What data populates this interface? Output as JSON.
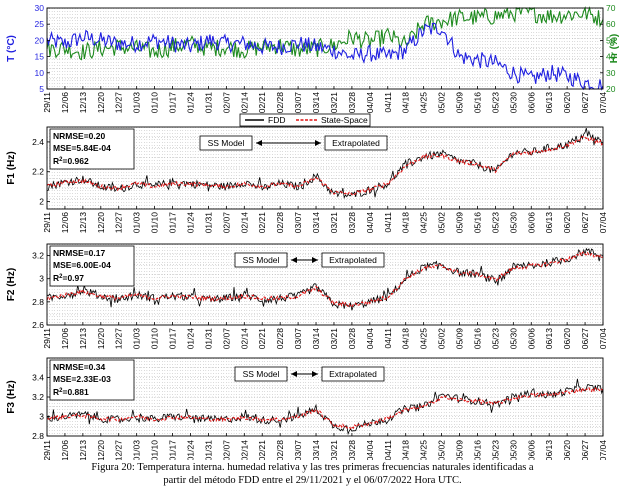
{
  "colors": {
    "temp": "#1f1fe0",
    "hum": "#1e8a1e",
    "fdd": "#000000",
    "ss": "#e01414",
    "grid": "#b5b5b5",
    "frame": "#000000"
  },
  "caption": {
    "line1": "Figura 20: Temperatura interna. humedad relativa y las tres primeras frecuencias naturales identificadas a",
    "line2": "partir del método FDD entre el 29/11/2021 y el 06/07/2022 Hora UTC."
  },
  "chart_data": [
    {
      "type": "line",
      "title": "",
      "ylabel": "T (°C)",
      "y2label": "Hr (%)",
      "ylim": [
        5,
        30
      ],
      "y2lim": [
        20,
        70
      ],
      "yticks": [
        "5",
        "10",
        "15",
        "20",
        "25",
        "30"
      ],
      "y2ticks": [
        "20",
        "30",
        "40",
        "50",
        "60",
        "70"
      ],
      "xticks": [
        "29/11",
        "12/06",
        "12/13",
        "12/20",
        "12/27",
        "01/03",
        "01/10",
        "01/17",
        "01/24",
        "01/31",
        "02/07",
        "02/14",
        "02/21",
        "02/28",
        "03/07",
        "03/14",
        "03/21",
        "03/28",
        "04/04",
        "04/11",
        "04/18",
        "04/25",
        "05/02",
        "05/09",
        "05/16",
        "05/23",
        "05/30",
        "06/06",
        "06/13",
        "06/20",
        "06/27",
        "07/04"
      ],
      "series": [
        {
          "name": "T",
          "axis": "left",
          "values": [
            20,
            19,
            21,
            20,
            19,
            19,
            20,
            19,
            18,
            20,
            19,
            19,
            18,
            18,
            19,
            18,
            17,
            15,
            16,
            15,
            17,
            23,
            24,
            15,
            14,
            13,
            10,
            8,
            10,
            9,
            7,
            6
          ]
        },
        {
          "name": "Hr",
          "axis": "right",
          "values": [
            45,
            45,
            43,
            45,
            46,
            45,
            43,
            46,
            48,
            45,
            46,
            44,
            46,
            47,
            44,
            45,
            47,
            52,
            49,
            53,
            47,
            60,
            62,
            64,
            64,
            65,
            67,
            67,
            65,
            66,
            67,
            63
          ]
        }
      ]
    },
    {
      "type": "line",
      "ylabel": "F1 (Hz)",
      "ylim": [
        1.95,
        2.5
      ],
      "yticks": [
        "2",
        "2.2",
        "2.4"
      ],
      "legend": [
        "FDD",
        "State-Space"
      ],
      "metrics": {
        "nrmse": "NRMSE=0.20",
        "mse": "MSE=5.84E-04",
        "r2_label": "R",
        "r2_value": "=0.962"
      },
      "annotations": {
        "model": "SS Model",
        "extrap": "Extrapolated"
      },
      "xticks": [
        "29/11",
        "12/06",
        "12/13",
        "12/20",
        "12/27",
        "01/03",
        "01/10",
        "01/17",
        "01/24",
        "01/31",
        "02/07",
        "02/14",
        "02/21",
        "02/28",
        "03/07",
        "03/14",
        "03/21",
        "03/28",
        "04/04",
        "04/11",
        "04/18",
        "04/25",
        "05/02",
        "05/09",
        "05/16",
        "05/23",
        "05/30",
        "06/06",
        "06/13",
        "06/20",
        "06/27",
        "07/04"
      ],
      "series": [
        {
          "name": "FDD",
          "values": [
            2.1,
            2.13,
            2.15,
            2.1,
            2.08,
            2.12,
            2.1,
            2.13,
            2.12,
            2.11,
            2.1,
            2.13,
            2.09,
            2.12,
            2.1,
            2.17,
            2.05,
            2.04,
            2.08,
            2.12,
            2.25,
            2.3,
            2.32,
            2.27,
            2.25,
            2.2,
            2.33,
            2.33,
            2.36,
            2.38,
            2.45,
            2.4
          ]
        },
        {
          "name": "State-Space",
          "values": [
            2.1,
            2.13,
            2.14,
            2.1,
            2.09,
            2.12,
            2.1,
            2.12,
            2.12,
            2.11,
            2.1,
            2.12,
            2.1,
            2.12,
            2.1,
            2.16,
            2.06,
            2.05,
            2.08,
            2.12,
            2.24,
            2.3,
            2.31,
            2.27,
            2.25,
            2.21,
            2.32,
            2.33,
            2.35,
            2.38,
            2.43,
            2.39
          ]
        }
      ]
    },
    {
      "type": "line",
      "ylabel": "F2 (Hz)",
      "ylim": [
        2.6,
        3.3
      ],
      "yticks": [
        "2.6",
        "2.8",
        "3",
        "3.2"
      ],
      "metrics": {
        "nrmse": "NRMSE=0.17",
        "mse": "MSE=6.00E-04",
        "r2_label": "R",
        "r2_value": "=0.97"
      },
      "annotations": {
        "model": "SS Model",
        "extrap": "Extrapolated"
      },
      "xticks": [
        "29/11",
        "12/06",
        "12/13",
        "12/20",
        "12/27",
        "01/03",
        "01/10",
        "01/17",
        "01/24",
        "01/31",
        "02/07",
        "02/14",
        "02/21",
        "02/28",
        "03/07",
        "03/14",
        "03/21",
        "03/28",
        "04/04",
        "04/11",
        "04/18",
        "04/25",
        "05/02",
        "05/09",
        "05/16",
        "05/23",
        "05/30",
        "06/06",
        "06/13",
        "06/20",
        "06/27",
        "07/04"
      ],
      "series": [
        {
          "name": "FDD",
          "values": [
            2.83,
            2.86,
            2.9,
            2.85,
            2.82,
            2.86,
            2.83,
            2.85,
            2.84,
            2.82,
            2.83,
            2.86,
            2.82,
            2.83,
            2.85,
            2.93,
            2.78,
            2.76,
            2.8,
            2.84,
            3.0,
            3.1,
            3.12,
            3.05,
            3.04,
            2.98,
            3.1,
            3.11,
            3.14,
            3.17,
            3.24,
            3.2
          ]
        },
        {
          "name": "State-Space",
          "values": [
            2.83,
            2.86,
            2.89,
            2.85,
            2.83,
            2.86,
            2.83,
            2.85,
            2.84,
            2.83,
            2.83,
            2.85,
            2.83,
            2.83,
            2.85,
            2.92,
            2.79,
            2.77,
            2.8,
            2.84,
            3.0,
            3.09,
            3.11,
            3.05,
            3.04,
            2.99,
            3.09,
            3.11,
            3.13,
            3.17,
            3.22,
            3.19
          ]
        }
      ]
    },
    {
      "type": "line",
      "ylabel": "F3 (Hz)",
      "ylim": [
        2.8,
        3.6
      ],
      "yticks": [
        "2.8",
        "3",
        "3.2",
        "3.4"
      ],
      "metrics": {
        "nrmse": "NRMSE=0.34",
        "mse": "MSE=2.33E-03",
        "r2_label": "R",
        "r2_value": "=0.881"
      },
      "annotations": {
        "model": "SS Model",
        "extrap": "Extrapolated"
      },
      "xticks": [
        "29/11",
        "12/06",
        "12/13",
        "12/20",
        "12/27",
        "01/03",
        "01/10",
        "01/17",
        "01/24",
        "01/31",
        "02/07",
        "02/14",
        "02/21",
        "02/28",
        "03/07",
        "03/14",
        "03/21",
        "03/28",
        "04/04",
        "04/11",
        "04/18",
        "04/25",
        "05/02",
        "05/09",
        "05/16",
        "05/23",
        "05/30",
        "06/06",
        "06/13",
        "06/20",
        "06/27",
        "07/04"
      ],
      "series": [
        {
          "name": "FDD",
          "values": [
            2.98,
            3.0,
            3.02,
            2.98,
            2.96,
            3.0,
            2.97,
            3.0,
            2.99,
            2.97,
            2.97,
            3.0,
            2.96,
            2.97,
            3.0,
            3.08,
            2.9,
            2.88,
            2.93,
            2.98,
            3.08,
            3.1,
            3.22,
            3.18,
            3.16,
            3.12,
            3.2,
            3.24,
            3.22,
            3.26,
            3.3,
            3.28
          ]
        },
        {
          "name": "State-Space",
          "values": [
            2.98,
            3.0,
            3.01,
            2.98,
            2.97,
            3.0,
            2.97,
            2.99,
            2.99,
            2.97,
            2.97,
            2.99,
            2.97,
            2.97,
            3.0,
            3.07,
            2.91,
            2.89,
            2.93,
            2.98,
            3.07,
            3.1,
            3.2,
            3.17,
            3.16,
            3.13,
            3.19,
            3.22,
            3.22,
            3.25,
            3.28,
            3.27
          ]
        }
      ]
    }
  ]
}
